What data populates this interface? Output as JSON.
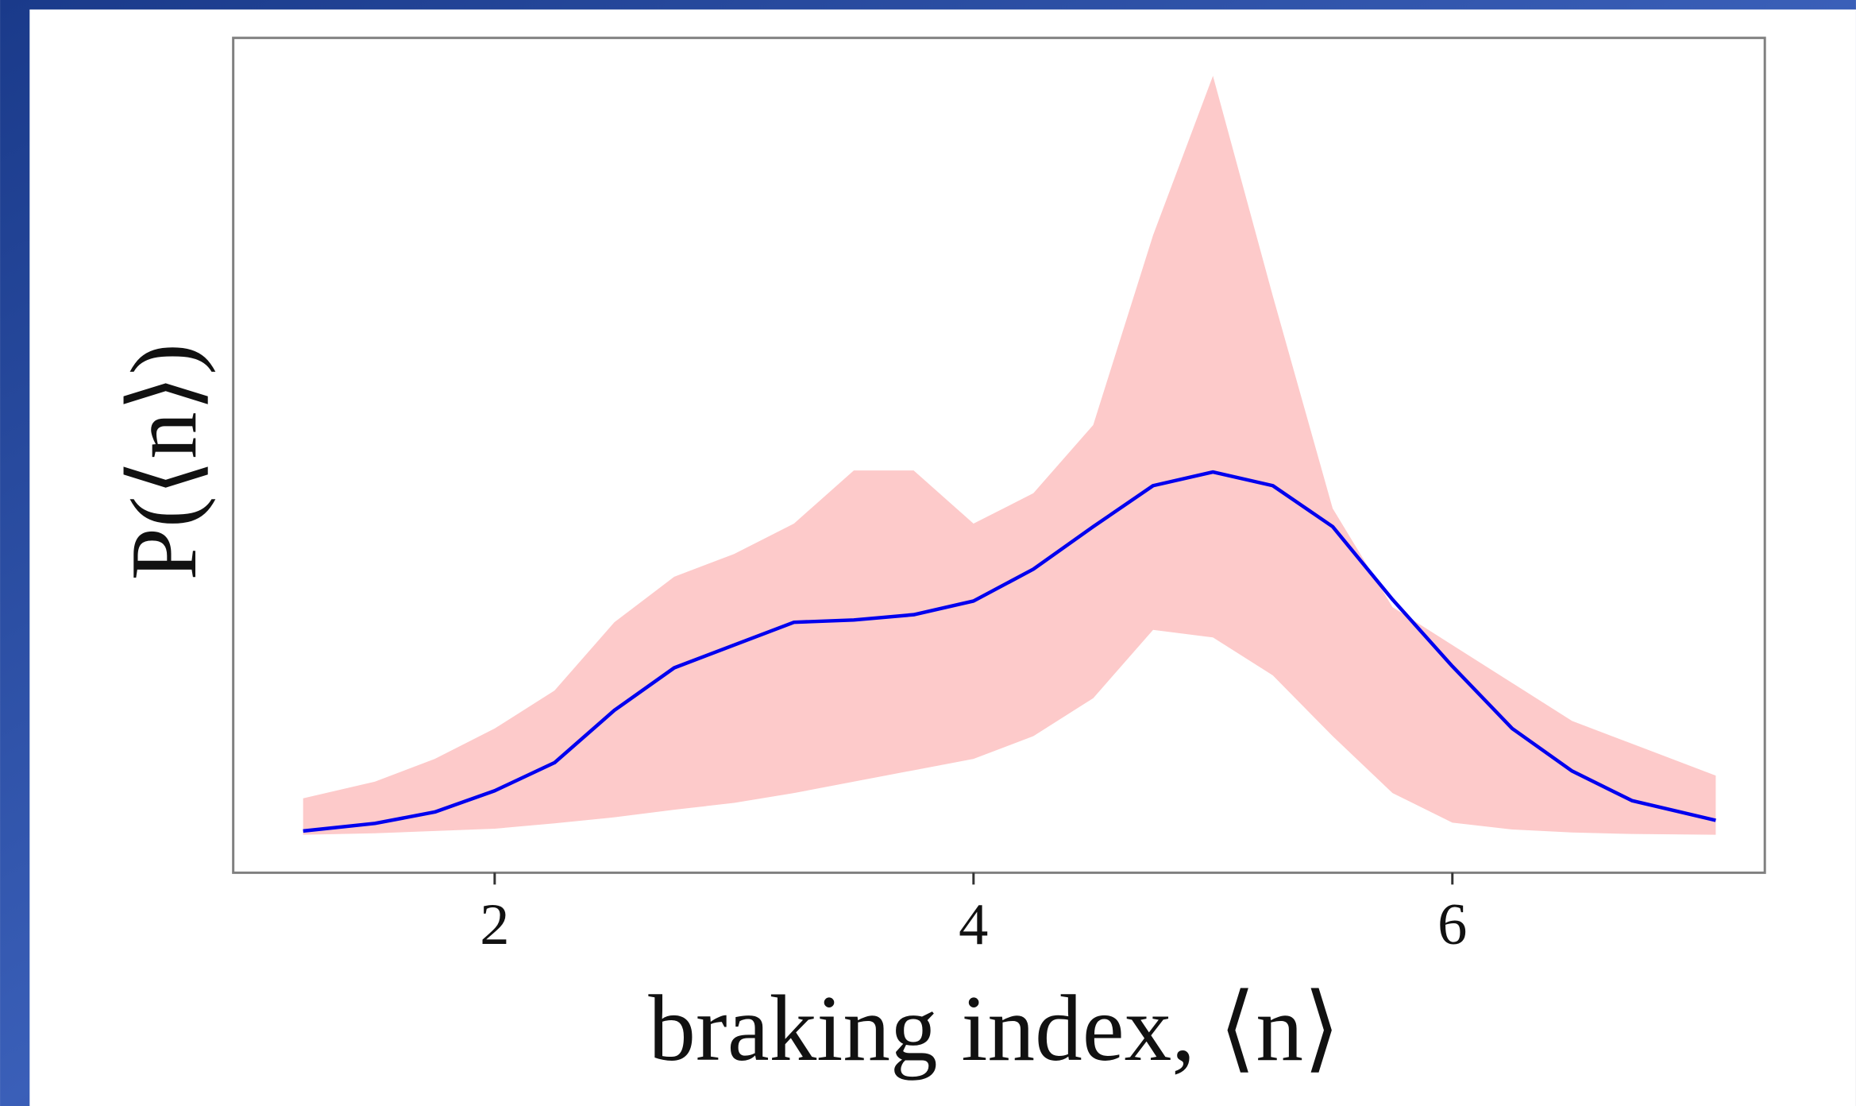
{
  "chart_data": {
    "type": "line",
    "xlabel": "braking index, ⟨n⟩",
    "ylabel": "P(⟨n⟩)",
    "x": [
      1.2,
      1.5,
      1.75,
      2,
      2.25,
      2.5,
      2.75,
      3,
      3.25,
      3.5,
      3.75,
      4,
      4.25,
      4.5,
      4.75,
      5,
      5.25,
      5.5,
      5.75,
      6,
      6.25,
      6.5,
      6.75,
      7.1
    ],
    "values": [
      0.005,
      0.015,
      0.03,
      0.058,
      0.095,
      0.164,
      0.22,
      0.25,
      0.28,
      0.283,
      0.29,
      0.308,
      0.35,
      0.406,
      0.46,
      0.478,
      0.46,
      0.406,
      0.31,
      0.222,
      0.14,
      0.084,
      0.045,
      0.019
    ],
    "color": "#0000ee",
    "band": {
      "color": "#fdcaca",
      "lower": [
        0,
        0.002,
        0.005,
        0.008,
        0.015,
        0.023,
        0.033,
        0.042,
        0.055,
        0.07,
        0.085,
        0.1,
        0.13,
        0.18,
        0.27,
        0.26,
        0.21,
        0.13,
        0.055,
        0.016,
        0.007,
        0.003,
        0.001,
        0
      ],
      "upper": [
        0.048,
        0.07,
        0.1,
        0.14,
        0.19,
        0.28,
        0.34,
        0.37,
        0.41,
        0.48,
        0.48,
        0.41,
        0.45,
        0.54,
        0.79,
        1.0,
        0.71,
        0.43,
        0.3,
        0.25,
        0.2,
        0.15,
        0.12,
        0.078
      ]
    },
    "xlim": [
      0.908,
      7.305
    ],
    "ylim": [
      -0.05,
      1.05
    ],
    "xticks": [
      2,
      4,
      6
    ]
  }
}
